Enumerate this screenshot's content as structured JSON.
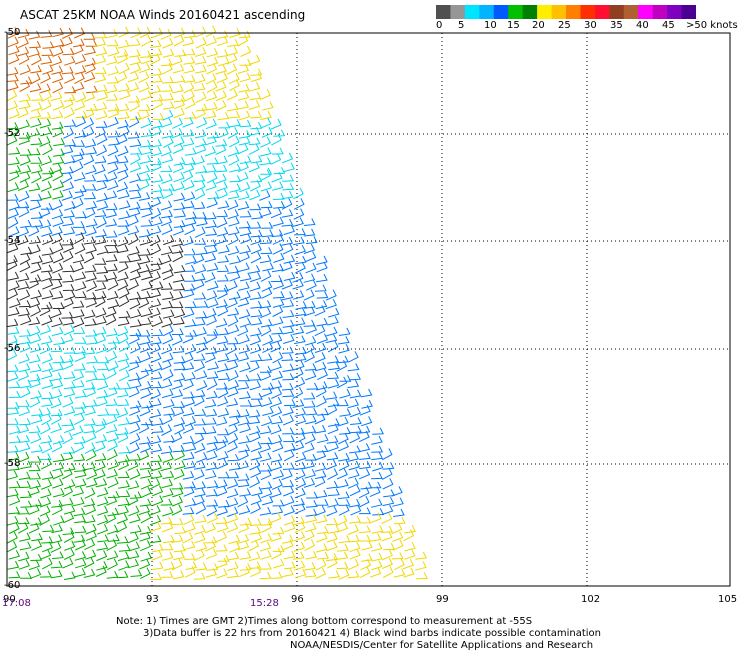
{
  "title": "ASCAT 25KM NOAA Winds 20160421 ascending",
  "scale": {
    "colors": [
      "#505050",
      "#969696",
      "#00e5ff",
      "#00b4ff",
      "#005aff",
      "#00c000",
      "#008000",
      "#ffee00",
      "#ffc000",
      "#ff8000",
      "#ff3000",
      "#ff1030",
      "#904020",
      "#b06030",
      "#ff00ff",
      "#c000c0",
      "#8000c0",
      "#4a0090"
    ],
    "labels": [
      "0",
      "5",
      "10",
      "15",
      "20",
      "25",
      "30",
      "35",
      "40",
      "45",
      ">50 knots"
    ]
  },
  "lat_labels": [
    "-50",
    "-52",
    "-54",
    "-56",
    "-58",
    "-60"
  ],
  "lon_labels": [
    "90",
    "93",
    "96",
    "99",
    "102",
    "105"
  ],
  "times": [
    "17:08",
    "15:28"
  ],
  "notes": [
    "Note: 1) Times are GMT 2)Times along bottom correspond to measurement at -55S",
    "3)Data buffer is 22 hrs from 20160421 4) Black wind barbs indicate possible contamination",
    "NOAA/NESDIS/Center for Satellite Applications and Research"
  ],
  "swath_colors": {
    "calm": "#303030",
    "light": "#00d8f0",
    "moderate": "#0078ff",
    "strong": "#0030c0",
    "fresh": "#00b000",
    "yellow": "#f0d800",
    "orange": "#d86000"
  }
}
